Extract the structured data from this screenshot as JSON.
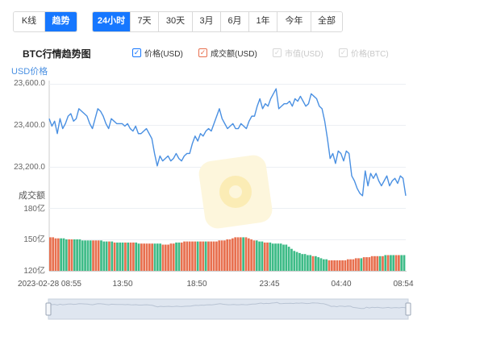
{
  "mode_tabs": [
    {
      "label": "K线",
      "active": false
    },
    {
      "label": "趋势",
      "active": true
    }
  ],
  "range_tabs": [
    {
      "label": "24小时",
      "active": true
    },
    {
      "label": "7天",
      "active": false
    },
    {
      "label": "30天",
      "active": false
    },
    {
      "label": "3月",
      "active": false
    },
    {
      "label": "6月",
      "active": false
    },
    {
      "label": "1年",
      "active": false
    },
    {
      "label": "今年",
      "active": false
    },
    {
      "label": "全部",
      "active": false
    }
  ],
  "legend": [
    {
      "label": "价格(USD)",
      "checked": true,
      "color": "#4a90e2"
    },
    {
      "label": "成交额(USD)",
      "checked": true,
      "color": "#e8704f"
    },
    {
      "label": "市值(USD)",
      "checked": false,
      "color": "#cccccc"
    },
    {
      "label": "价格(BTC)",
      "checked": false,
      "color": "#cccccc"
    }
  ],
  "chart_data": {
    "type": "line",
    "title": "BTC行情趋势图",
    "price_axis": {
      "label": "USD价格",
      "ticks": [
        "23,600.0",
        "23,400.0",
        "23,200.0"
      ],
      "ylim": [
        23140,
        23600
      ]
    },
    "volume_axis": {
      "label": "成交额",
      "ticks": [
        "180亿",
        "150亿",
        "120亿"
      ],
      "ylim": [
        120,
        180
      ]
    },
    "x_ticks": [
      "2023-02-28 08:55",
      "13:50",
      "18:50",
      "23:45",
      "04:40",
      "08:54"
    ],
    "series": [
      {
        "name": "价格(USD)",
        "color": "#4a90e2",
        "values": [
          23460,
          23430,
          23450,
          23400,
          23460,
          23420,
          23440,
          23470,
          23480,
          23450,
          23460,
          23500,
          23490,
          23480,
          23470,
          23440,
          23420,
          23460,
          23500,
          23490,
          23470,
          23440,
          23420,
          23460,
          23450,
          23440,
          23440,
          23440,
          23430,
          23440,
          23420,
          23410,
          23430,
          23400,
          23400,
          23410,
          23420,
          23400,
          23380,
          23320,
          23270,
          23310,
          23290,
          23300,
          23310,
          23290,
          23300,
          23320,
          23300,
          23290,
          23310,
          23320,
          23320,
          23360,
          23390,
          23370,
          23400,
          23390,
          23410,
          23420,
          23410,
          23440,
          23470,
          23500,
          23460,
          23440,
          23420,
          23430,
          23440,
          23420,
          23420,
          23440,
          23430,
          23420,
          23450,
          23470,
          23470,
          23510,
          23540,
          23500,
          23520,
          23510,
          23540,
          23560,
          23580,
          23500,
          23510,
          23520,
          23520,
          23530,
          23510,
          23540,
          23530,
          23550,
          23530,
          23510,
          23520,
          23560,
          23550,
          23540,
          23510,
          23500,
          23450,
          23380,
          23300,
          23320,
          23280,
          23330,
          23320,
          23290,
          23330,
          23320,
          23230,
          23210,
          23180,
          23160,
          23150,
          23250,
          23190,
          23240,
          23220,
          23240,
          23210,
          23190,
          23210,
          23230,
          23190,
          23210,
          23220,
          23200,
          23230,
          23220,
          23150
        ]
      },
      {
        "name": "成交额(USD)",
        "color": "#e8704f",
        "values": [
          152,
          152,
          151,
          151,
          151,
          151,
          150,
          150,
          150,
          150,
          150,
          150,
          149,
          149,
          149,
          149,
          149,
          149,
          149,
          149,
          148,
          148,
          148,
          148,
          147,
          147,
          147,
          147,
          147,
          147,
          147,
          147,
          147,
          146,
          146,
          146,
          146,
          146,
          146,
          146,
          146,
          146,
          145,
          145,
          145,
          146,
          146,
          147,
          147,
          147,
          148,
          148,
          148,
          148,
          148,
          148,
          148,
          148,
          148,
          148,
          148,
          148,
          148,
          149,
          149,
          149,
          150,
          150,
          151,
          152,
          152,
          152,
          152,
          152,
          151,
          150,
          149,
          149,
          148,
          148,
          147,
          147,
          147,
          146,
          146,
          146,
          146,
          145,
          145,
          143,
          141,
          139,
          138,
          137,
          136,
          136,
          135,
          135,
          134,
          134,
          133,
          132,
          131,
          131,
          130,
          130,
          130,
          130,
          130,
          130,
          130,
          131,
          131,
          131,
          132,
          132,
          132,
          133,
          133,
          133,
          134,
          134,
          134,
          134,
          134,
          135,
          135,
          135,
          135,
          135,
          135,
          135,
          135
        ],
        "direction": "UUUUDDDUUDDDDDDDUUUDDDUDUDDDUDUUDDUUUUUDDDUUUUUDDUUUUUUDUUDUUUUUUUUUUUUUDUUUUDDDUUDDDDDDDDDDDDDDDDUDDDDDUUUUUUUUUUUUDUUUUUUDUDUDDUUDDUUUU"
      }
    ]
  }
}
